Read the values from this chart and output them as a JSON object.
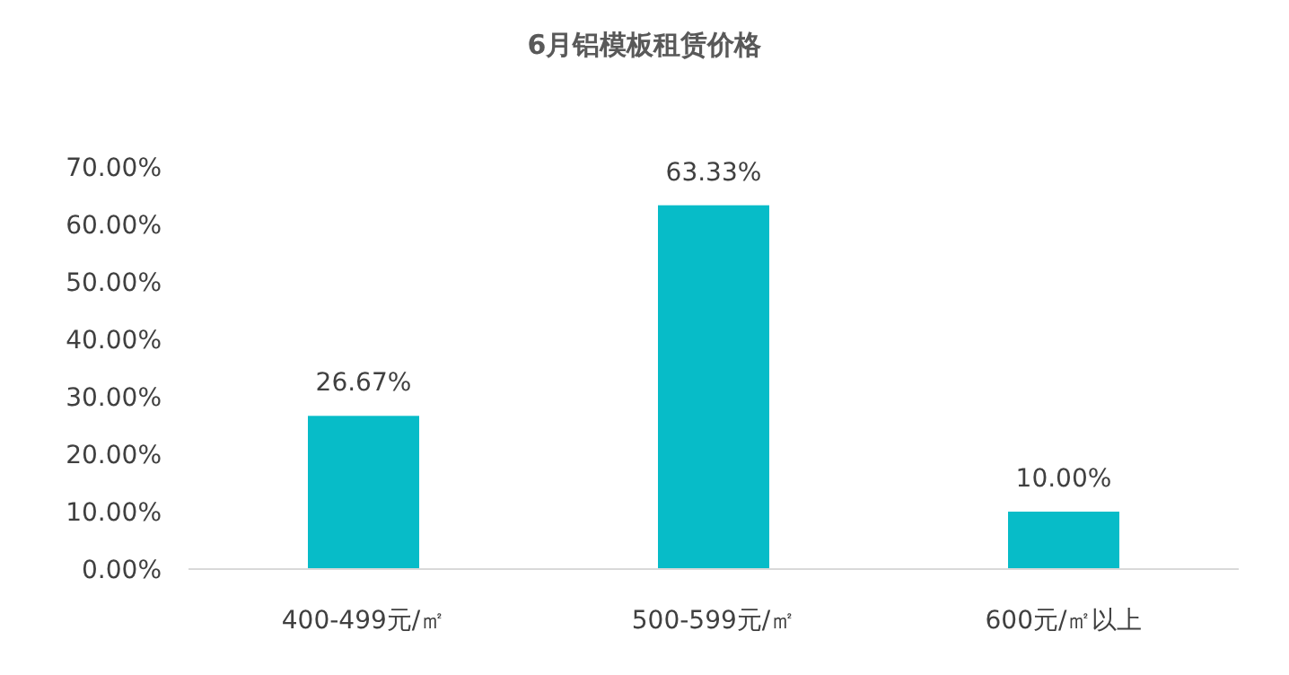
{
  "chart_data": {
    "type": "bar",
    "title": "6月铝模板租赁价格",
    "categories": [
      "400-499元/㎡",
      "500-599元/㎡",
      "600元/㎡以上"
    ],
    "values": [
      26.67,
      63.33,
      10.0
    ],
    "value_labels": [
      "26.67%",
      "63.33%",
      "10.00%"
    ],
    "color": "#07bcc8",
    "ylim": [
      0,
      70
    ],
    "yticks": [
      {
        "value": 0,
        "label": "0.00%"
      },
      {
        "value": 10,
        "label": "10.00%"
      },
      {
        "value": 20,
        "label": "20.00%"
      },
      {
        "value": 30,
        "label": "30.00%"
      },
      {
        "value": 40,
        "label": "40.00%"
      },
      {
        "value": 50,
        "label": "50.00%"
      },
      {
        "value": 60,
        "label": "60.00%"
      },
      {
        "value": 70,
        "label": "70.00%"
      }
    ]
  }
}
